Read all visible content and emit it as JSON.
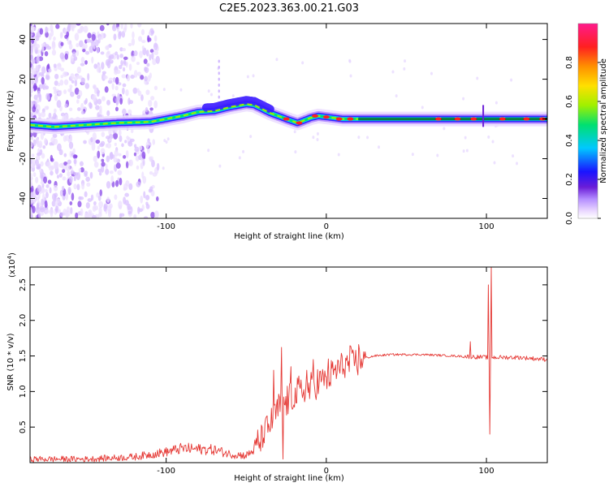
{
  "title": "C2E5.2023.363.00.21.G03",
  "colors": {
    "snr_line": "#e53935",
    "spectrum_center": "#e8203c",
    "colorbar": [
      "#ffffff",
      "#e9d6ff",
      "#b38cff",
      "#6a1dd8",
      "#1a14ff",
      "#00c8ff",
      "#00e070",
      "#a0f000",
      "#ffe000",
      "#ff9000",
      "#ff2020",
      "#ff1a8c"
    ]
  },
  "chart_data": [
    {
      "type": "heatmap",
      "xlabel": "Height of straight line (km)",
      "ylabel": "Frequency (Hz)",
      "xlim": [
        -185,
        138
      ],
      "ylim": [
        -50,
        48
      ],
      "xticks": [
        -100,
        0,
        100
      ],
      "yticks": [
        -40,
        -20,
        0,
        20,
        40
      ],
      "colorbar": {
        "label": "Normalized spectral amplitude",
        "ticks": [
          0.0,
          0.2,
          0.4,
          0.6,
          0.8
        ],
        "range": [
          0,
          1
        ]
      },
      "center_track": [
        [
          -185,
          -3
        ],
        [
          -170,
          -4
        ],
        [
          -150,
          -3
        ],
        [
          -130,
          -2
        ],
        [
          -110,
          -1.5
        ],
        [
          -100,
          0
        ],
        [
          -90,
          1.5
        ],
        [
          -80,
          3.5
        ],
        [
          -70,
          4
        ],
        [
          -60,
          6
        ],
        [
          -50,
          7.5
        ],
        [
          -45,
          7
        ],
        [
          -35,
          3
        ],
        [
          -25,
          0
        ],
        [
          -18,
          -2
        ],
        [
          -10,
          0.5
        ],
        [
          -5,
          1.5
        ],
        [
          0,
          1
        ],
        [
          10,
          0
        ],
        [
          50,
          0
        ],
        [
          100,
          0
        ],
        [
          138,
          0
        ]
      ],
      "center_track_columns": [
        "height_km",
        "frequency_hz"
      ]
    },
    {
      "type": "line",
      "xlabel": "Height of straight line (km)",
      "ylabel": "SNR (10 * v/v)",
      "y_multiplier": "(x10",
      "y_multiplier_exp": "4",
      "y_multiplier_close": ")",
      "xlim": [
        -185,
        138
      ],
      "ylim": [
        0,
        2.75
      ],
      "xticks": [
        -100,
        0,
        100
      ],
      "yticks": [
        0.5,
        1.0,
        1.5,
        2.0,
        2.5
      ],
      "series": [
        {
          "envelope": [
            [
              -185,
              0.05
            ],
            [
              -150,
              0.05
            ],
            [
              -120,
              0.08
            ],
            [
              -100,
              0.15
            ],
            [
              -90,
              0.2
            ],
            [
              -70,
              0.18
            ],
            [
              -60,
              0.12
            ],
            [
              -50,
              0.1
            ],
            [
              -45,
              0.18
            ],
            [
              -40,
              0.35
            ],
            [
              -35,
              0.55
            ],
            [
              -30,
              0.75
            ],
            [
              -25,
              0.85
            ],
            [
              -20,
              0.92
            ],
            [
              -15,
              1.0
            ],
            [
              -10,
              1.05
            ],
            [
              -5,
              1.12
            ],
            [
              0,
              1.2
            ],
            [
              5,
              1.28
            ],
            [
              10,
              1.35
            ],
            [
              20,
              1.45
            ],
            [
              30,
              1.5
            ],
            [
              40,
              1.52
            ],
            [
              60,
              1.52
            ],
            [
              80,
              1.5
            ],
            [
              100,
              1.48
            ],
            [
              120,
              1.48
            ],
            [
              138,
              1.45
            ]
          ],
          "envelope_columns": [
            "height_km",
            "snr_x1e4"
          ],
          "spikes": [
            [
              -33,
              1.3
            ],
            [
              -28,
              1.62
            ],
            [
              -27,
              0.05
            ],
            [
              -22,
              1.35
            ],
            [
              -12,
              1.3
            ],
            [
              -8,
              1.45
            ],
            [
              90,
              1.7
            ],
            [
              101,
              2.5
            ],
            [
              102,
              0.4
            ],
            [
              103,
              2.75
            ]
          ],
          "spikes_columns": [
            "height_km",
            "snr_x1e4"
          ]
        }
      ]
    }
  ]
}
